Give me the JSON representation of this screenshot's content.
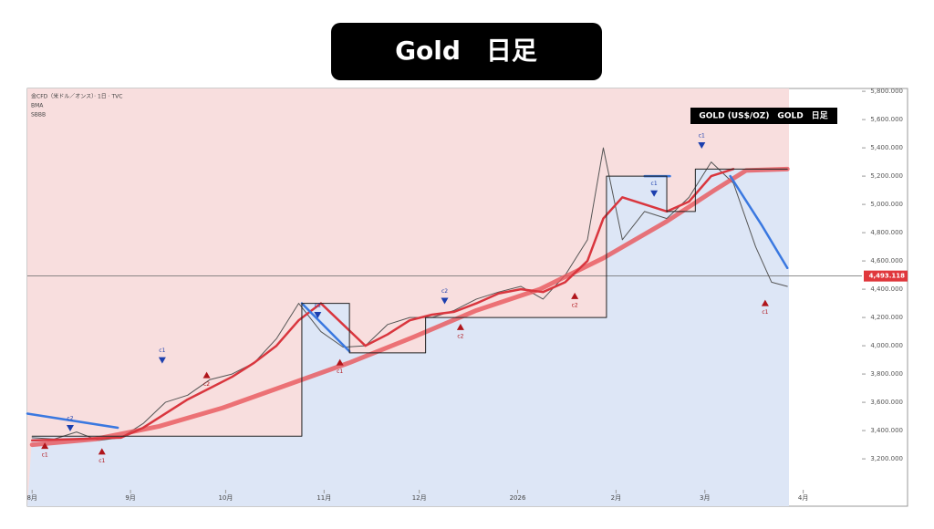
{
  "page_title": "Gold　日足",
  "chart_data": {
    "type": "line",
    "header": [
      "金CFD（米ドル／オンス）· 1日 · TVC",
      "BMA",
      "SBBB"
    ],
    "label_box": "GOLD (US$/OZ)　GOLD　日足",
    "xlim": [
      -1.5,
      261.5
    ],
    "xticks": [
      {
        "value": 0,
        "label": "8月"
      },
      {
        "value": 31,
        "label": "9月"
      },
      {
        "value": 61,
        "label": "10月"
      },
      {
        "value": 92,
        "label": "11月"
      },
      {
        "value": 122,
        "label": "12月"
      },
      {
        "value": 153,
        "label": "2026"
      },
      {
        "value": 184,
        "label": "2月"
      },
      {
        "value": 212,
        "label": "3月"
      },
      {
        "value": 243,
        "label": "4月"
      }
    ],
    "ylim": [
      2865,
      5820
    ],
    "yticks": [
      {
        "value": 3200,
        "label": "3,200.000"
      },
      {
        "value": 3400,
        "label": "3,400.000"
      },
      {
        "value": 3600,
        "label": "3,600.000"
      },
      {
        "value": 3800,
        "label": "3,800.000"
      },
      {
        "value": 4000,
        "label": "4,000.000"
      },
      {
        "value": 4200,
        "label": "4,200.000"
      },
      {
        "value": 4400,
        "label": "4,400.000"
      },
      {
        "value": 4600,
        "label": "4,600.000"
      },
      {
        "value": 4800,
        "label": "4,800.000"
      },
      {
        "value": 5000,
        "label": "5,000.000"
      },
      {
        "value": 5200,
        "label": "5,200.000"
      },
      {
        "value": 5400,
        "label": "5,400.000"
      },
      {
        "value": 5600,
        "label": "5,600.000"
      },
      {
        "value": 5800,
        "label": "5,800.000"
      }
    ],
    "last_price": {
      "value": 4493.118,
      "label": "4,493.118"
    },
    "series": [
      {
        "color": "#555555",
        "width": 1,
        "x": [
          0,
          7,
          14,
          21,
          28,
          35,
          42,
          49,
          56,
          63,
          70,
          77,
          84,
          91,
          98,
          105,
          112,
          119,
          126,
          133,
          140,
          147,
          154,
          161,
          168,
          175,
          180,
          186,
          193,
          200,
          207,
          214,
          221,
          228,
          233,
          238
        ],
        "values": [
          3350,
          3340,
          3390,
          3330,
          3350,
          3450,
          3600,
          3650,
          3760,
          3800,
          3880,
          4050,
          4300,
          4100,
          3990,
          4000,
          4150,
          4200,
          4200,
          4250,
          4330,
          4380,
          4420,
          4330,
          4500,
          4750,
          5400,
          4750,
          4950,
          4900,
          5050,
          5300,
          5150,
          4700,
          4450,
          4420
        ]
      },
      {
        "color": "#e8555a",
        "width": 5,
        "x": [
          0,
          20,
          40,
          60,
          80,
          100,
          120,
          140,
          160,
          180,
          200,
          215,
          225,
          238
        ],
        "values": [
          3300,
          3340,
          3430,
          3560,
          3720,
          3880,
          4060,
          4250,
          4400,
          4620,
          4880,
          5100,
          5240,
          5250
        ]
      },
      {
        "color": "#d9363e",
        "width": 2.5,
        "x": [
          0,
          14,
          28,
          35,
          42,
          49,
          56,
          63,
          70,
          77,
          84,
          91,
          98,
          105,
          112,
          119,
          126,
          133,
          140,
          147,
          154,
          161,
          168,
          175,
          180,
          186,
          193,
          200,
          207,
          214,
          221
        ],
        "values": [
          3330,
          3340,
          3350,
          3420,
          3520,
          3620,
          3700,
          3780,
          3880,
          4000,
          4180,
          4300,
          4150,
          4000,
          4080,
          4180,
          4220,
          4240,
          4300,
          4370,
          4400,
          4380,
          4450,
          4600,
          4900,
          5050,
          5000,
          4950,
          5020,
          5200,
          5250
        ]
      },
      {
        "color": "#3a78e0",
        "width": 2.5,
        "x": [
          -1.5,
          27,
          28,
          85,
          100,
          101,
          193,
          201,
          202,
          220,
          230,
          238
        ],
        "values": [
          3520,
          3420,
          null,
          4300,
          3960,
          null,
          5200,
          5200,
          null,
          5200,
          4850,
          4550
        ]
      },
      {
        "color": "#222222",
        "width": 1,
        "x": [
          0,
          85,
          85,
          100,
          100,
          124,
          124,
          181,
          181,
          200,
          200,
          209,
          209,
          238
        ],
        "values": [
          3360,
          3360,
          4300,
          4300,
          3950,
          3950,
          4200,
          4200,
          5200,
          5200,
          4950,
          4950,
          5250,
          5250
        ]
      }
    ],
    "signals": [
      {
        "x": 4,
        "y": 3290,
        "label": "c1",
        "dir": "up"
      },
      {
        "x": 12,
        "y": 3420,
        "label": "c2",
        "dir": "down"
      },
      {
        "x": 22,
        "y": 3250,
        "label": "c1",
        "dir": "up"
      },
      {
        "x": 41,
        "y": 3900,
        "label": "c1",
        "dir": "down"
      },
      {
        "x": 55,
        "y": 3790,
        "label": "c2",
        "dir": "up"
      },
      {
        "x": 90,
        "y": 4220,
        "label": "c1",
        "dir": "down"
      },
      {
        "x": 97,
        "y": 3880,
        "label": "c1",
        "dir": "up"
      },
      {
        "x": 130,
        "y": 4320,
        "label": "c2",
        "dir": "down"
      },
      {
        "x": 135,
        "y": 4130,
        "label": "c2",
        "dir": "up"
      },
      {
        "x": 171,
        "y": 4350,
        "label": "c2",
        "dir": "up"
      },
      {
        "x": 196,
        "y": 5080,
        "label": "c1",
        "dir": "down"
      },
      {
        "x": 211,
        "y": 5420,
        "label": "c1",
        "dir": "down"
      },
      {
        "x": 231,
        "y": 4300,
        "label": "c1",
        "dir": "up"
      }
    ]
  }
}
